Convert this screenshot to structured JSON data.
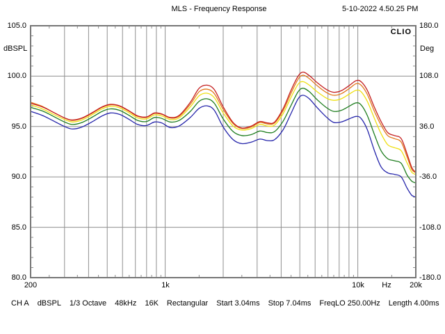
{
  "header": {
    "title": "MLS - Frequency Response",
    "timestamp": "5-10-2022 4.50.25 PM"
  },
  "branding": {
    "logo": "CLIO"
  },
  "axes": {
    "left": {
      "label": "dBSPL",
      "ticks": [
        "105.0",
        "100.0",
        "95.0",
        "90.0",
        "85.0",
        "80.0"
      ]
    },
    "right": {
      "label": "Deg",
      "ticks": [
        "180.0",
        "108.0",
        "36.0",
        "-36.0",
        "-108.0",
        "-180.0"
      ]
    },
    "bottom": {
      "unit": "Hz",
      "ticks": [
        "200",
        "1k",
        "10k",
        "20k"
      ]
    }
  },
  "status_bar": {
    "items": [
      "CH A",
      "dBSPL",
      "1/3 Octave",
      "48kHz",
      "16K",
      "Rectangular",
      "Start 3.04ms",
      "Stop 7.04ms",
      "FreqLO 250.00Hz",
      "Length 4.00ms"
    ]
  },
  "colors": {
    "grid": "#8f8f8f",
    "border": "#767676",
    "text": "#000000",
    "background": "#ffffff"
  },
  "chart_data": {
    "type": "line",
    "title": "MLS - Frequency Response",
    "x_scale": "log",
    "x_unit": "Hz",
    "xlim": [
      200,
      20000
    ],
    "ylabel_left": "dBSPL",
    "ylim_left": [
      80,
      105
    ],
    "ylabel_right": "Deg",
    "ylim_right": [
      -180,
      180
    ],
    "grid": true,
    "legend": "none",
    "x_gridlines": [
      300,
      400,
      500,
      600,
      700,
      800,
      900,
      1000,
      2000,
      3000,
      4000,
      5000,
      6000,
      7000,
      8000,
      9000,
      10000
    ],
    "x_minor_ticks": [
      250,
      350,
      450,
      550,
      650,
      750,
      850,
      950,
      1500,
      2500,
      3500,
      4500,
      5500,
      6500,
      7500,
      8500,
      9500,
      15000
    ],
    "y_gridlines_db": [
      100,
      95,
      90,
      85
    ],
    "x": [
      200,
      230,
      260,
      300,
      330,
      370,
      420,
      470,
      520,
      580,
      650,
      720,
      800,
      880,
      960,
      1060,
      1180,
      1350,
      1500,
      1650,
      1800,
      2000,
      2250,
      2500,
      2800,
      3100,
      3400,
      3700,
      4100,
      4500,
      4900,
      5200,
      5600,
      6200,
      6900,
      7500,
      8200,
      9000,
      9800,
      10400,
      11200,
      12200,
      13200,
      14300,
      15500,
      16800,
      18000,
      19000,
      19600,
      20000
    ],
    "series": [
      {
        "name": "curve-blue",
        "color": "#2424aa",
        "values": [
          96.5,
          96.1,
          95.6,
          95.0,
          94.75,
          94.95,
          95.5,
          96.05,
          96.35,
          96.2,
          95.7,
          95.2,
          95.1,
          95.45,
          95.35,
          94.9,
          95.05,
          95.9,
          96.8,
          97.05,
          96.6,
          94.95,
          93.7,
          93.3,
          93.45,
          93.75,
          93.6,
          93.7,
          94.7,
          96.3,
          97.75,
          98.1,
          97.75,
          96.8,
          95.9,
          95.4,
          95.45,
          95.75,
          96.0,
          95.8,
          94.7,
          92.6,
          91.0,
          90.4,
          90.25,
          90.0,
          88.9,
          88.2,
          88.05,
          88.0
        ]
      },
      {
        "name": "curve-green",
        "color": "#1e7d1e",
        "values": [
          96.9,
          96.55,
          96.05,
          95.45,
          95.2,
          95.4,
          95.95,
          96.5,
          96.75,
          96.6,
          96.1,
          95.6,
          95.5,
          95.9,
          95.8,
          95.45,
          95.6,
          96.5,
          97.5,
          97.75,
          97.3,
          95.75,
          94.5,
          94.1,
          94.2,
          94.55,
          94.4,
          94.5,
          95.55,
          97.1,
          98.45,
          98.8,
          98.45,
          97.6,
          96.85,
          96.5,
          96.6,
          97.0,
          97.35,
          97.15,
          96.1,
          94.2,
          92.6,
          91.8,
          91.6,
          91.35,
          90.2,
          89.6,
          89.45,
          89.4
        ]
      },
      {
        "name": "curve-yellow",
        "color": "#efe012",
        "values": [
          97.15,
          96.75,
          96.25,
          95.7,
          95.45,
          95.65,
          96.2,
          96.75,
          97.0,
          96.85,
          96.35,
          95.85,
          95.75,
          96.15,
          96.05,
          95.7,
          95.85,
          96.95,
          98.05,
          98.3,
          97.85,
          96.35,
          95.05,
          94.65,
          94.8,
          95.2,
          95.05,
          95.15,
          96.3,
          97.9,
          99.2,
          99.45,
          99.1,
          98.4,
          97.8,
          97.6,
          97.75,
          98.2,
          98.6,
          98.45,
          97.5,
          95.8,
          94.3,
          93.2,
          92.9,
          92.6,
          91.4,
          90.5,
          90.3,
          90.25
        ]
      },
      {
        "name": "curve-orange",
        "color": "#e2791c",
        "values": [
          97.4,
          97.0,
          96.45,
          95.85,
          95.6,
          95.8,
          96.35,
          96.9,
          97.15,
          97.0,
          96.5,
          96.0,
          95.9,
          96.3,
          96.2,
          95.85,
          96.0,
          97.2,
          98.45,
          98.7,
          98.25,
          96.7,
          95.3,
          94.8,
          94.95,
          95.4,
          95.25,
          95.35,
          96.6,
          98.3,
          99.7,
          100.1,
          99.75,
          99.0,
          98.35,
          98.1,
          98.25,
          98.75,
          99.25,
          99.1,
          98.2,
          96.5,
          95.15,
          94.1,
          93.8,
          93.45,
          92.0,
          90.8,
          90.5,
          90.45
        ]
      },
      {
        "name": "curve-red",
        "color": "#c41e1e",
        "values": [
          97.3,
          96.95,
          96.45,
          95.85,
          95.65,
          95.85,
          96.4,
          96.95,
          97.2,
          97.05,
          96.55,
          96.05,
          95.95,
          96.35,
          96.25,
          95.9,
          96.1,
          97.4,
          98.8,
          99.1,
          98.65,
          96.95,
          95.4,
          94.85,
          95.05,
          95.5,
          95.35,
          95.45,
          96.8,
          98.6,
          100.0,
          100.4,
          100.05,
          99.3,
          98.65,
          98.4,
          98.55,
          99.05,
          99.55,
          99.45,
          98.6,
          96.9,
          95.5,
          94.4,
          94.1,
          93.8,
          92.3,
          91.0,
          90.6,
          90.5
        ]
      }
    ]
  }
}
